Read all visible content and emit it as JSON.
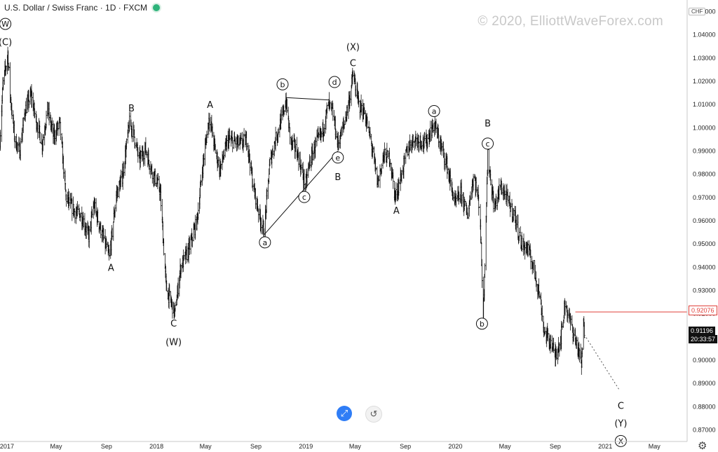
{
  "header": {
    "title": "U.S. Dollar / Swiss Franc · 1D · FXCM",
    "status_color": "#2db37a"
  },
  "watermark": "© 2020, ElliottWaveForex.com",
  "price_axis": {
    "currency": "CHF",
    "labels": [
      "1.05000",
      "1.04000",
      "1.03000",
      "1.02000",
      "1.01000",
      "1.00000",
      "0.99000",
      "0.98000",
      "0.97000",
      "0.96000",
      "0.95000",
      "0.94000",
      "0.93000",
      "0.92000",
      "0.91000",
      "0.90000",
      "0.89000",
      "0.88000",
      "0.87000"
    ]
  },
  "time_axis": {
    "labels": [
      "2017",
      "May",
      "Sep",
      "2018",
      "May",
      "Sep",
      "2019",
      "May",
      "Sep",
      "2020",
      "May",
      "Sep",
      "2021",
      "May"
    ]
  },
  "price_tags": {
    "red_level": "0.92076",
    "red_color": "#e0403a",
    "last_price": "0.91196",
    "countdown": "20:33:57"
  },
  "buttons": {
    "fit_icon": "fit-screen-icon",
    "reset_icon": "reset-icon",
    "settings_icon": "gear-icon"
  },
  "chart_data": {
    "type": "ohlc",
    "title": "U.S. Dollar / Swiss Franc · 1D · FXCM",
    "ylim": [
      0.865,
      1.055
    ],
    "xlim": [
      "2016-12-15",
      "2021-07-20"
    ],
    "path_points": [
      [
        "2016-12-15",
        0.995
      ],
      [
        "2016-12-22",
        1.018
      ],
      [
        "2017-01-03",
        1.032
      ],
      [
        "2017-01-10",
        1.012
      ],
      [
        "2017-01-20",
        0.995
      ],
      [
        "2017-02-01",
        0.99
      ],
      [
        "2017-02-15",
        1.008
      ],
      [
        "2017-03-01",
        1.014
      ],
      [
        "2017-03-12",
        1.004
      ],
      [
        "2017-03-28",
        0.993
      ],
      [
        "2017-04-10",
        1.008
      ],
      [
        "2017-04-25",
        0.996
      ],
      [
        "2017-05-10",
        1.002
      ],
      [
        "2017-05-25",
        0.97
      ],
      [
        "2017-06-15",
        0.964
      ],
      [
        "2017-07-03",
        0.962
      ],
      [
        "2017-07-20",
        0.953
      ],
      [
        "2017-08-01",
        0.967
      ],
      [
        "2017-08-15",
        0.958
      ],
      [
        "2017-09-08",
        0.944
      ],
      [
        "2017-09-25",
        0.971
      ],
      [
        "2017-10-10",
        0.979
      ],
      [
        "2017-10-27",
        1.002
      ],
      [
        "2017-11-06",
        0.998
      ],
      [
        "2017-11-20",
        0.986
      ],
      [
        "2017-12-05",
        0.991
      ],
      [
        "2017-12-20",
        0.982
      ],
      [
        "2018-01-10",
        0.973
      ],
      [
        "2018-01-25",
        0.931
      ],
      [
        "2018-02-15",
        0.92
      ],
      [
        "2018-03-01",
        0.94
      ],
      [
        "2018-03-20",
        0.947
      ],
      [
        "2018-04-10",
        0.96
      ],
      [
        "2018-04-25",
        0.985
      ],
      [
        "2018-05-10",
        1.005
      ],
      [
        "2018-05-25",
        0.99
      ],
      [
        "2018-06-05",
        0.982
      ],
      [
        "2018-06-25",
        0.995
      ],
      [
        "2018-07-10",
        0.994
      ],
      [
        "2018-07-25",
        0.993
      ],
      [
        "2018-08-10",
        0.995
      ],
      [
        "2018-08-25",
        0.975
      ],
      [
        "2018-09-10",
        0.962
      ],
      [
        "2018-09-21",
        0.955
      ],
      [
        "2018-10-05",
        0.985
      ],
      [
        "2018-10-20",
        0.996
      ],
      [
        "2018-11-05",
        1.005
      ],
      [
        "2018-11-13",
        1.012
      ],
      [
        "2018-11-25",
        0.994
      ],
      [
        "2018-12-10",
        0.99
      ],
      [
        "2018-12-31",
        0.975
      ],
      [
        "2019-01-10",
        0.985
      ],
      [
        "2019-01-25",
        0.993
      ],
      [
        "2019-02-10",
        0.998
      ],
      [
        "2019-02-25",
        1.01
      ],
      [
        "2019-03-08",
        1.006
      ],
      [
        "2019-03-20",
        0.993
      ],
      [
        "2019-04-05",
        1.002
      ],
      [
        "2019-04-20",
        1.015
      ],
      [
        "2019-04-26",
        1.023
      ],
      [
        "2019-05-10",
        1.01
      ],
      [
        "2019-05-25",
        1.006
      ],
      [
        "2019-06-10",
        0.993
      ],
      [
        "2019-06-25",
        0.976
      ],
      [
        "2019-07-10",
        0.988
      ],
      [
        "2019-07-25",
        0.987
      ],
      [
        "2019-08-07",
        0.97
      ],
      [
        "2019-08-20",
        0.978
      ],
      [
        "2019-09-05",
        0.99
      ],
      [
        "2019-09-20",
        0.995
      ],
      [
        "2019-10-05",
        0.995
      ],
      [
        "2019-10-20",
        0.993
      ],
      [
        "2019-11-10",
        1.002
      ],
      [
        "2019-11-25",
        0.993
      ],
      [
        "2019-12-10",
        0.985
      ],
      [
        "2019-12-31",
        0.967
      ],
      [
        "2020-01-15",
        0.972
      ],
      [
        "2020-01-30",
        0.962
      ],
      [
        "2020-02-15",
        0.98
      ],
      [
        "2020-03-01",
        0.965
      ],
      [
        "2020-03-09",
        0.918
      ],
      [
        "2020-03-20",
        0.988
      ],
      [
        "2020-04-05",
        0.965
      ],
      [
        "2020-04-20",
        0.975
      ],
      [
        "2020-05-05",
        0.97
      ],
      [
        "2020-05-25",
        0.962
      ],
      [
        "2020-06-10",
        0.95
      ],
      [
        "2020-06-25",
        0.948
      ],
      [
        "2020-07-10",
        0.94
      ],
      [
        "2020-07-25",
        0.928
      ],
      [
        "2020-08-05",
        0.912
      ],
      [
        "2020-08-20",
        0.908
      ],
      [
        "2020-09-01",
        0.902
      ],
      [
        "2020-09-15",
        0.91
      ],
      [
        "2020-09-25",
        0.925
      ],
      [
        "2020-10-05",
        0.918
      ],
      [
        "2020-10-15",
        0.912
      ],
      [
        "2020-10-25",
        0.906
      ],
      [
        "2020-11-04",
        0.898
      ],
      [
        "2020-11-09",
        0.915
      ],
      [
        "2020-11-11",
        0.912
      ]
    ],
    "trendlines": [
      {
        "from": [
          "2018-09-21",
          0.954
        ],
        "to": [
          "2019-03-20",
          0.99
        ]
      },
      {
        "from": [
          "2018-11-13",
          1.013
        ],
        "to": [
          "2019-02-25",
          1.012
        ]
      }
    ],
    "projection": {
      "from": [
        "2020-11-11",
        0.911
      ],
      "to": [
        "2021-02-05",
        0.887
      ]
    },
    "horizontal_level": {
      "price": 0.92076,
      "from": "2020-10-20"
    },
    "wave_labels": [
      {
        "text": "W",
        "circled": true,
        "date": "2016-12-28",
        "price": 1.0435
      },
      {
        "text": "(C)",
        "circled": false,
        "date": "2016-12-28",
        "price": 1.0355
      },
      {
        "text": "A",
        "circled": false,
        "date": "2017-09-12",
        "price": 0.9385
      },
      {
        "text": "B",
        "circled": false,
        "date": "2017-11-01",
        "price": 1.007
      },
      {
        "text": "C",
        "circled": false,
        "date": "2018-02-12",
        "price": 0.9145
      },
      {
        "text": "(W)",
        "circled": false,
        "date": "2018-02-12",
        "price": 0.9065
      },
      {
        "text": "A",
        "circled": false,
        "date": "2018-05-12",
        "price": 1.0085
      },
      {
        "text": "a",
        "circled": true,
        "date": "2018-09-23",
        "price": 0.9495
      },
      {
        "text": "b",
        "circled": true,
        "date": "2018-11-05",
        "price": 1.0175
      },
      {
        "text": "c",
        "circled": true,
        "date": "2018-12-28",
        "price": 0.969
      },
      {
        "text": "d",
        "circled": true,
        "date": "2019-03-12",
        "price": 1.0185
      },
      {
        "text": "e",
        "circled": true,
        "date": "2019-03-20",
        "price": 0.986
      },
      {
        "text": "B",
        "circled": false,
        "date": "2019-03-20",
        "price": 0.9775
      },
      {
        "text": "(X)",
        "circled": false,
        "date": "2019-04-26",
        "price": 1.0335
      },
      {
        "text": "C",
        "circled": false,
        "date": "2019-04-26",
        "price": 1.0265
      },
      {
        "text": "A",
        "circled": false,
        "date": "2019-08-10",
        "price": 0.963
      },
      {
        "text": "a",
        "circled": true,
        "date": "2019-11-10",
        "price": 1.006
      },
      {
        "text": "B",
        "circled": false,
        "date": "2020-03-20",
        "price": 1.0005
      },
      {
        "text": "c",
        "circled": true,
        "date": "2020-03-20",
        "price": 0.992
      },
      {
        "text": "b",
        "circled": true,
        "date": "2020-03-06",
        "price": 0.9145
      },
      {
        "text": "C",
        "circled": false,
        "date": "2021-02-08",
        "price": 0.879
      },
      {
        "text": "(Y)",
        "circled": false,
        "date": "2021-02-08",
        "price": 0.8715
      },
      {
        "text": "X",
        "circled": true,
        "date": "2021-02-08",
        "price": 0.864
      }
    ]
  }
}
